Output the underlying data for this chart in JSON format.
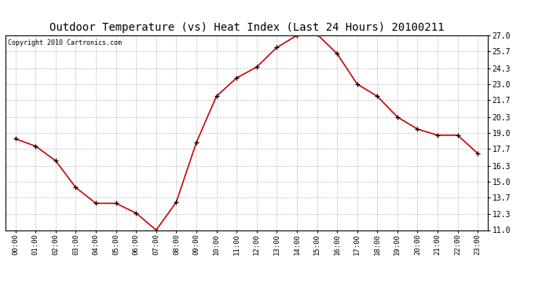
{
  "title": "Outdoor Temperature (vs) Heat Index (Last 24 Hours) 20100211",
  "copyright_text": "Copyright 2010 Cartronics.com",
  "x_labels": [
    "00:00",
    "01:00",
    "02:00",
    "03:00",
    "04:00",
    "05:00",
    "06:00",
    "07:00",
    "08:00",
    "09:00",
    "10:00",
    "11:00",
    "12:00",
    "13:00",
    "14:00",
    "15:00",
    "16:00",
    "17:00",
    "18:00",
    "19:00",
    "20:00",
    "21:00",
    "22:00",
    "23:00"
  ],
  "y_values": [
    18.5,
    17.9,
    16.7,
    14.5,
    13.2,
    13.2,
    12.4,
    11.0,
    13.3,
    18.2,
    22.0,
    23.5,
    24.4,
    26.0,
    27.0,
    27.1,
    25.5,
    23.0,
    22.0,
    20.3,
    19.3,
    18.8,
    18.8,
    17.3
  ],
  "line_color": "#cc0000",
  "marker_color": "#000000",
  "marker_size": 5,
  "background_color": "#ffffff",
  "grid_color": "#bbbbbb",
  "ylim": [
    11.0,
    27.0
  ],
  "yticks": [
    11.0,
    12.3,
    13.7,
    15.0,
    16.3,
    17.7,
    19.0,
    20.3,
    21.7,
    23.0,
    24.3,
    25.7,
    27.0
  ],
  "title_fontsize": 10,
  "copyright_fontsize": 6,
  "tick_fontsize": 6.5,
  "ytick_fontsize": 7
}
